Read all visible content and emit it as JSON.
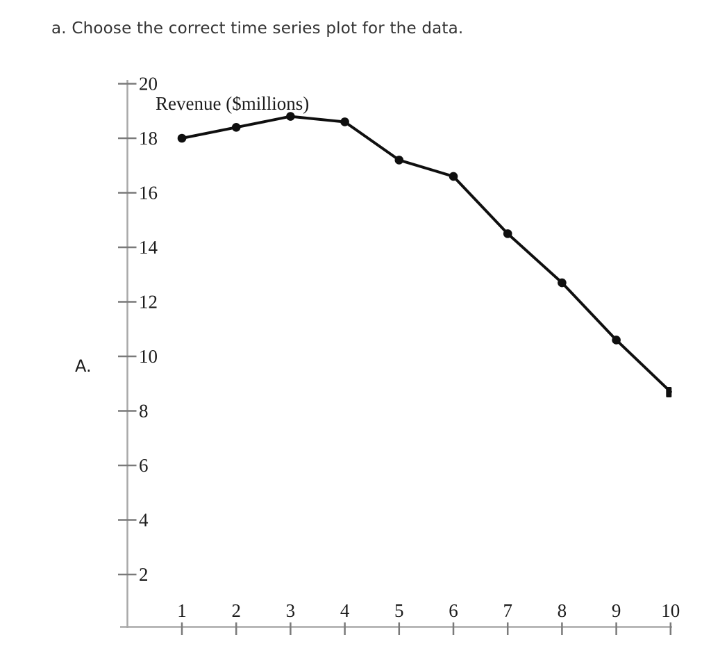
{
  "question": {
    "text": "a. Choose the correct time series plot for the data."
  },
  "option": {
    "label": "A."
  },
  "chart_data": {
    "type": "line",
    "title": "Revenue ($millions)",
    "xlabel": "",
    "ylabel": "Revenue ($millions)",
    "x": [
      1,
      2,
      3,
      4,
      5,
      6,
      7,
      8,
      9,
      10
    ],
    "series": [
      {
        "name": "Revenue ($millions)",
        "values": [
          18.0,
          18.4,
          18.8,
          18.6,
          17.2,
          16.6,
          14.5,
          12.7,
          10.6,
          8.7
        ]
      }
    ],
    "x_tick_labels": [
      "1",
      "2",
      "3",
      "4",
      "5",
      "6",
      "7",
      "8",
      "9",
      "10"
    ],
    "y_ticks": [
      2,
      4,
      6,
      8,
      10,
      12,
      14,
      16,
      18,
      20
    ],
    "xlim": [
      0,
      10.3
    ],
    "ylim": [
      0,
      20.2
    ],
    "grid": false,
    "legend": "none",
    "marker": "circle"
  },
  "colors": {
    "axis": "#a8a8a8",
    "tick": "#7a7a7a",
    "label": "#1c1c1c",
    "line": "#0f0f0f",
    "question_text": "#333333",
    "option_label": "#1b1b1b"
  }
}
